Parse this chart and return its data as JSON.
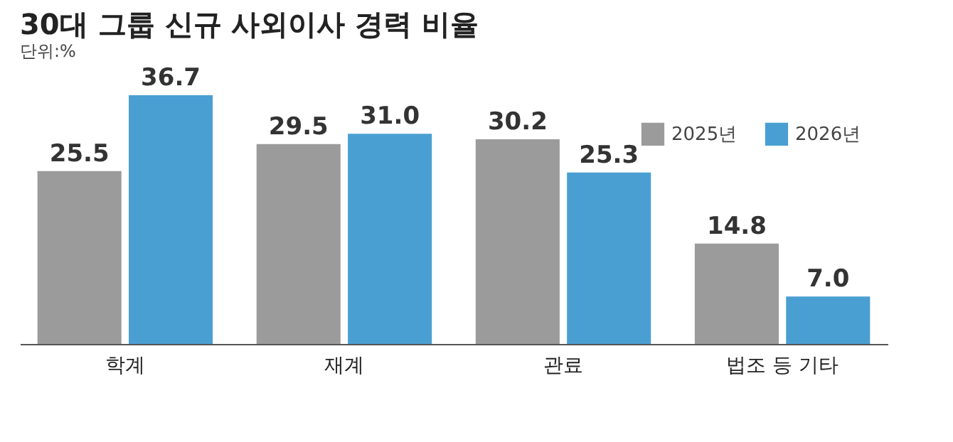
{
  "chart_data": {
    "type": "bar",
    "title": "30대 그룹 신규 사외이사 경력 비율",
    "subtitle": "단위:%",
    "categories": [
      "학계",
      "재계",
      "관료",
      "법조 등 기타"
    ],
    "series": [
      {
        "name": "2025년",
        "color": "#9b9b9b",
        "values": [
          25.5,
          29.5,
          30.2,
          14.8
        ],
        "value_labels": [
          "25.5",
          "29.5",
          "30.2",
          "14.8"
        ]
      },
      {
        "name": "2026년",
        "color": "#4a9fd2",
        "values": [
          36.7,
          31.0,
          25.3,
          7.0
        ],
        "value_labels": [
          "36.7",
          "31.0",
          "25.3",
          "7.0"
        ]
      }
    ],
    "legend": "top right",
    "grid": false
  }
}
